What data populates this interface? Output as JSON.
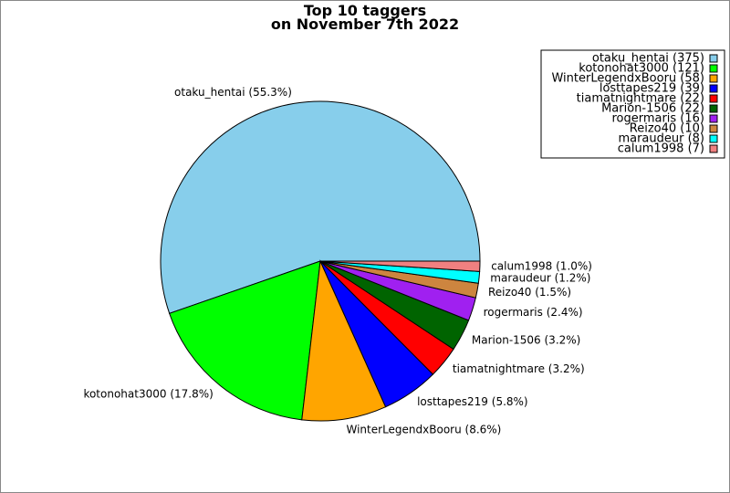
{
  "chart_data": {
    "type": "pie",
    "title_lines": [
      "Top 10 taggers",
      "on November 7th 2022"
    ],
    "legend_placement": "top-right",
    "slices": [
      {
        "name": "otaku_hentai",
        "value": 375,
        "percent_label": "otaku_hentai (55.3%)",
        "legend_label": "otaku_hentai (375)",
        "color": "#87ceeb"
      },
      {
        "name": "kotonohat3000",
        "value": 121,
        "percent_label": "kotonohat3000 (17.8%)",
        "legend_label": "kotonohat3000 (121)",
        "color": "#00ff00"
      },
      {
        "name": "WinterLegendxBooru",
        "value": 58,
        "percent_label": "WinterLegendxBooru (8.6%)",
        "legend_label": "WinterLegendxBooru (58)",
        "color": "#ffa500"
      },
      {
        "name": "losttapes219",
        "value": 39,
        "percent_label": "losttapes219 (5.8%)",
        "legend_label": "losttapes219 (39)",
        "color": "#0000ff"
      },
      {
        "name": "tiamatnightmare",
        "value": 22,
        "percent_label": "tiamatnightmare (3.2%)",
        "legend_label": "tiamatnightmare (22)",
        "color": "#ff0000"
      },
      {
        "name": "Marion-1506",
        "value": 22,
        "percent_label": "Marion-1506 (3.2%)",
        "legend_label": "Marion-1506 (22)",
        "color": "#006400"
      },
      {
        "name": "rogermaris",
        "value": 16,
        "percent_label": "rogermaris (2.4%)",
        "legend_label": "rogermaris (16)",
        "color": "#a020f0"
      },
      {
        "name": "Reizo40",
        "value": 10,
        "percent_label": "Reizo40 (1.5%)",
        "legend_label": "Reizo40 (10)",
        "color": "#cd853f"
      },
      {
        "name": "maraudeur",
        "value": 8,
        "percent_label": "maraudeur (1.2%)",
        "legend_label": "maraudeur (8)",
        "color": "#00ffff"
      },
      {
        "name": "calum1998",
        "value": 7,
        "percent_label": "calum1998 (1.0%)",
        "legend_label": "calum1998 (7)",
        "color": "#f08080"
      }
    ]
  }
}
